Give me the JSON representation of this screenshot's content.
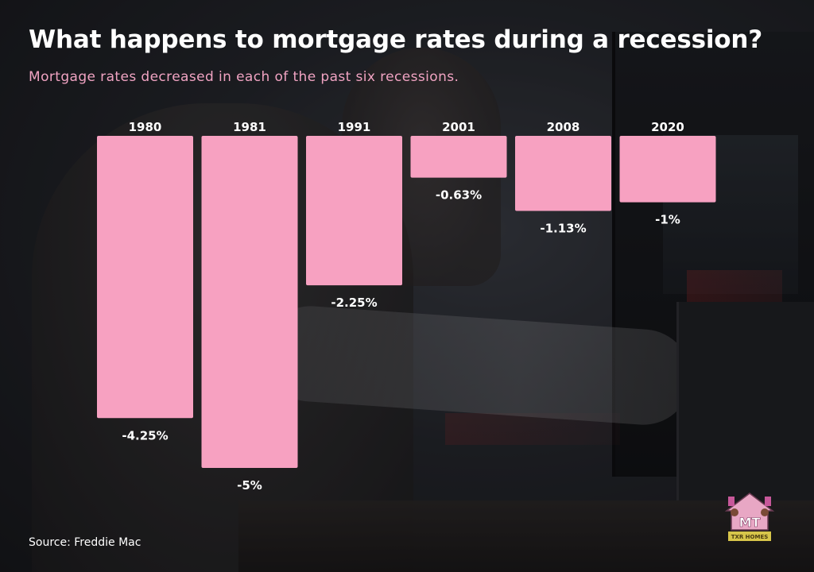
{
  "title": "What happens to mortgage rates during a recession?",
  "subtitle": "Mortgage rates decreased in each of the past six recessions.",
  "source": "Source: Freddie Mac",
  "logo": {
    "icon": "txr-homes-house-logo",
    "text_top": "MT",
    "text_bottom": "TXR HOMES"
  },
  "colors": {
    "bar": "#f7a1c1",
    "title": "#ffffff",
    "subtitle": "#f0a3c2",
    "label": "#ffffff"
  },
  "chart_data": {
    "type": "bar",
    "orientation": "vertical-negative",
    "categories": [
      "1980",
      "1981",
      "1991",
      "2001",
      "2008",
      "2020"
    ],
    "values": [
      -4.25,
      -5,
      -2.25,
      -0.63,
      -1.13,
      -1
    ],
    "value_labels": [
      "-4.25%",
      "-5%",
      "-2.25%",
      "-0.63%",
      "-1.13%",
      "-1%"
    ],
    "ylim": [
      -5,
      0
    ],
    "grid": false,
    "legend": "none"
  }
}
